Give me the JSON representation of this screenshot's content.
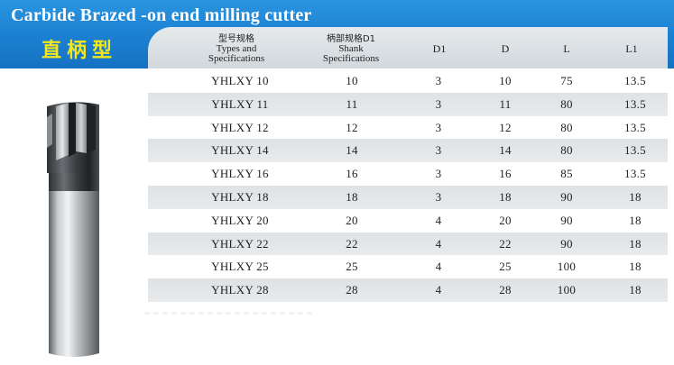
{
  "header": {
    "title": "Carbide Brazed -on end milling cutter",
    "subtitle": "直柄型"
  },
  "colors": {
    "title_bar": "#1b7fd0",
    "title_text": "#ffffff",
    "subtitle_text": "#f3e61a",
    "header_panel": "#d9dee2",
    "row_shade": "#e2e5e7"
  },
  "table": {
    "columns": [
      {
        "key": "type",
        "lines": [
          "型号规格",
          "Types and",
          "Specifications"
        ]
      },
      {
        "key": "shank",
        "lines": [
          "柄部规格D1",
          "Shank",
          "Specifications"
        ]
      },
      {
        "key": "d1",
        "lines": [
          "D1"
        ]
      },
      {
        "key": "d",
        "lines": [
          "D"
        ]
      },
      {
        "key": "l",
        "lines": [
          "L"
        ]
      },
      {
        "key": "l1",
        "lines": [
          "L1"
        ]
      }
    ],
    "rows": [
      [
        "YHLXY 10",
        "10",
        "3",
        "10",
        "75",
        "13.5"
      ],
      [
        "YHLXY 11",
        "11",
        "3",
        "11",
        "80",
        "13.5"
      ],
      [
        "YHLXY 12",
        "12",
        "3",
        "12",
        "80",
        "13.5"
      ],
      [
        "YHLXY 14",
        "14",
        "3",
        "14",
        "80",
        "13.5"
      ],
      [
        "YHLXY 16",
        "16",
        "3",
        "16",
        "85",
        "13.5"
      ],
      [
        "YHLXY 18",
        "18",
        "3",
        "18",
        "90",
        "18"
      ],
      [
        "YHLXY 20",
        "20",
        "4",
        "20",
        "90",
        "18"
      ],
      [
        "YHLXY 22",
        "22",
        "4",
        "22",
        "90",
        "18"
      ],
      [
        "YHLXY 25",
        "25",
        "4",
        "25",
        "100",
        "18"
      ],
      [
        "YHLXY 28",
        "28",
        "4",
        "28",
        "100",
        "18"
      ]
    ]
  },
  "image": {
    "subject": "end-milling-cutter-icon"
  }
}
